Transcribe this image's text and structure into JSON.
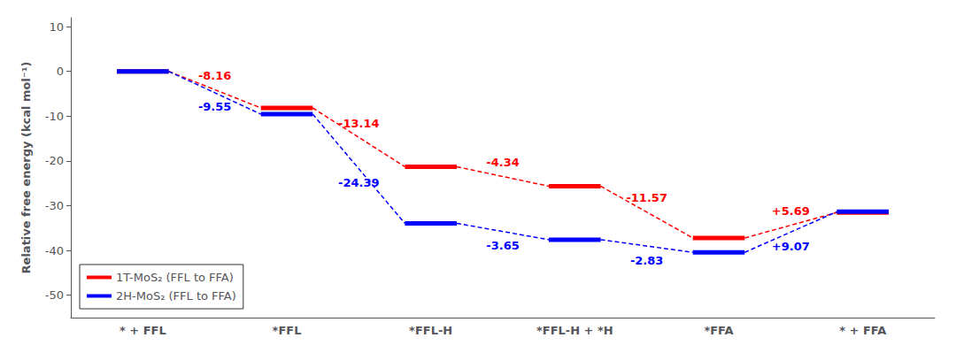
{
  "chart_data": {
    "type": "line",
    "ylabel": "Relative free energy (kcal mol⁻¹)",
    "categories": [
      "* + FFL",
      "*FFL",
      "*FFL-H",
      "*FFL-H + *H",
      "*FFA",
      "* + FFA"
    ],
    "series": [
      {
        "name": "1T-MoS₂ (FFL to FFA)",
        "color": "#FF0000",
        "values": [
          0.0,
          -8.16,
          -21.3,
          -25.64,
          -37.21,
          -31.52
        ],
        "annotations": [
          "-8.16",
          "-13.14",
          "-4.34",
          "-11.57",
          "+5.69"
        ]
      },
      {
        "name": "2H-MoS₂ (FFL to FFA)",
        "color": "#0000FF",
        "values": [
          0.0,
          -9.55,
          -33.94,
          -37.59,
          -40.42,
          -31.35
        ],
        "annotations": [
          "-9.55",
          "-24.39",
          "-3.65",
          "-2.83",
          "+9.07"
        ]
      }
    ],
    "ylim": [
      -55,
      12
    ],
    "yticks": [
      10,
      0,
      -10,
      -20,
      -30,
      -40,
      -50
    ],
    "grid": false,
    "legend": "lower left",
    "line_style": "dashed"
  }
}
